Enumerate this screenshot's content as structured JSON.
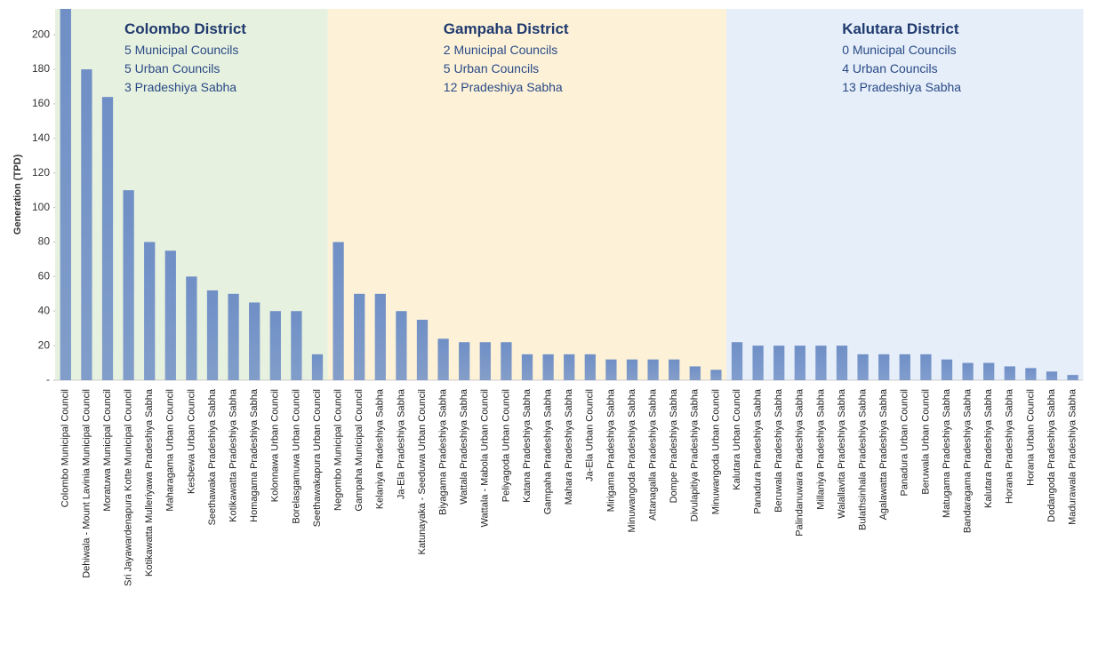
{
  "chart_data": {
    "type": "bar",
    "y_label": "Generation (TPD)",
    "ylim": [
      0,
      215
    ],
    "yticks": [
      {
        "value": 0,
        "label": "-"
      },
      20,
      40,
      60,
      80,
      100,
      120,
      140,
      160,
      180,
      200
    ],
    "color": "#6f8fc6",
    "groups": [
      {
        "title": "Colombo District",
        "lines": [
          "5 Municipal Councils",
          "5 Urban Councils",
          "3 Pradeshiya Sabha"
        ],
        "color": "#e7f1df",
        "categories": [
          "Colombo Municipal Council",
          "Dehiwala - Mount Lavinia Municipal Council",
          "Moratuwa Municipal Council",
          "Sri Jayawardenapura Kotte Municipal Council",
          "Kotikawatta Mulleriyawa Pradeshiya Sabha",
          "Maharagama Urban Council",
          "Kesbewa Urban Council",
          "Seethawaka Pradeshiya Sabha",
          "Kotikawatta Pradeshiya Sabha",
          "Homagama Pradeshiya Sabha",
          "Kolonnawa Urban Council",
          "Borelasgamuwa Urban Council",
          "Seethawakapura Urban Council"
        ],
        "values": [
          215,
          180,
          164,
          110,
          80,
          75,
          60,
          52,
          50,
          45,
          40,
          40,
          15
        ]
      },
      {
        "title": "Gampaha District",
        "lines": [
          "2 Municipal Councils",
          "5 Urban Councils",
          "12 Pradeshiya Sabha"
        ],
        "color": "#fdf2d8",
        "categories": [
          "Negombo Municipal Council",
          "Gampaha Municipal Council",
          "Kelaniya Pradeshiya Sabha",
          "Ja-Ela Pradeshiya Sabha",
          "Katunayaka - Seeduwa Urban Council",
          "Biyagama Pradeshiya Sabha",
          "Wattala Pradeshiya Sabha",
          "Wattala - Mabola Urban Council",
          "Peliyagoda Urban Council",
          "Katana Pradeshiya Sabha",
          "Gampaha Pradeshiya Sabha",
          "Mahara Pradeshiya Sabha",
          "Ja-Ela Urban Council",
          "Mirigama Pradeshiya Sabha",
          "Minuwangoda Pradeshiya Sabha",
          "Attanagalla Pradeshiya Sabha",
          "Dompe Pradeshiya Sabha",
          "Divulapitiya Pradeshiya Sabha",
          "Minuwangoda Urban Council"
        ],
        "values": [
          80,
          50,
          50,
          40,
          35,
          24,
          22,
          22,
          22,
          15,
          15,
          15,
          15,
          12,
          12,
          12,
          12,
          8,
          6
        ]
      },
      {
        "title": "Kalutara District",
        "lines": [
          "0 Municipal Councils",
          "4 Urban Councils",
          "13 Pradeshiya Sabha"
        ],
        "color": "#e5eef9",
        "categories": [
          "Kalutara Urban Council",
          "Panadura Pradeshiya Sabha",
          "Beruwala Pradeshiya Sabha",
          "Palindanuwara Pradeshiya Sabha",
          "Millaniya Pradeshiya Sabha",
          "Walallavita Pradeshiya Sabha",
          "Bulathsinhala Pradeshiya Sabha",
          "Agalawatta Pradeshiya Sabha",
          "Panadura Urban Council",
          "Beruwala Urban Council",
          "Matugama Pradeshiya Sabha",
          "Bandaragama Pradeshiya Sabha",
          "Kalutara Pradeshiya Sabha",
          "Horana Pradeshiya Sabha",
          "Horana Urban Council",
          "Dodangoda Pradeshiya Sabha",
          "Madurawala Pradeshiya Sabha"
        ],
        "values": [
          22,
          20,
          20,
          20,
          20,
          20,
          15,
          15,
          15,
          15,
          12,
          10,
          10,
          8,
          7,
          5,
          3
        ]
      }
    ]
  }
}
